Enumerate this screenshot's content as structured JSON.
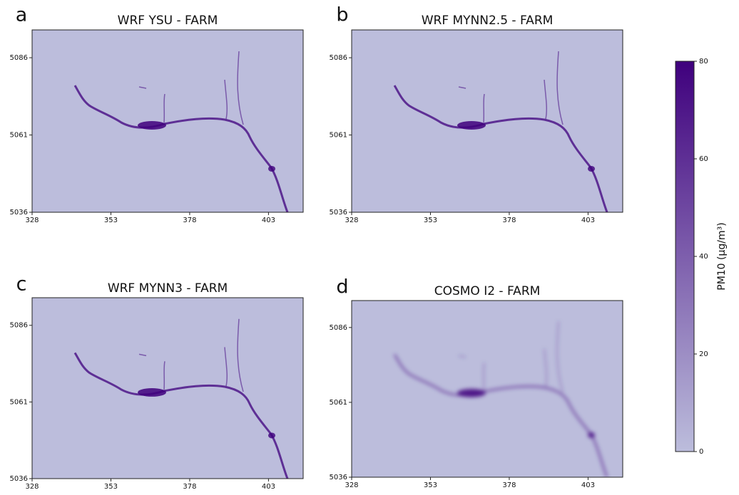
{
  "chart_data": [
    {
      "type": "heatmap",
      "panel_label": "a",
      "title": "WRF YSU - FARM",
      "xlim": [
        328,
        414
      ],
      "xticks": [
        328,
        353,
        378,
        403
      ],
      "ylim": [
        5036,
        5095
      ],
      "yticks": [
        5036,
        5061,
        5086
      ],
      "smooth": false
    },
    {
      "type": "heatmap",
      "panel_label": "b",
      "title": "WRF MYNN2.5 - FARM",
      "xlim": [
        328,
        414
      ],
      "xticks": [
        328,
        353,
        378,
        403
      ],
      "ylim": [
        5036,
        5095
      ],
      "yticks": [
        5036,
        5061,
        5086
      ],
      "smooth": false
    },
    {
      "type": "heatmap",
      "panel_label": "c",
      "title": "WRF MYNN3 - FARM",
      "xlim": [
        328,
        414
      ],
      "xticks": [
        328,
        353,
        378,
        403
      ],
      "ylim": [
        5036,
        5095
      ],
      "yticks": [
        5036,
        5061,
        5086
      ],
      "smooth": false
    },
    {
      "type": "heatmap",
      "panel_label": "d",
      "title": "COSMO I2 - FARM",
      "xlim": [
        328,
        414
      ],
      "xticks": [
        328,
        353,
        378,
        403
      ],
      "ylim": [
        5036,
        5095
      ],
      "yticks": [
        5036,
        5061,
        5086
      ],
      "smooth": true
    }
  ],
  "colorbar": {
    "label": "PM10 (µg/m³)",
    "lim": [
      0,
      80
    ],
    "ticks": [
      0,
      20,
      40,
      60,
      80
    ],
    "colors": [
      "#bcbddc",
      "#3f007d"
    ]
  }
}
